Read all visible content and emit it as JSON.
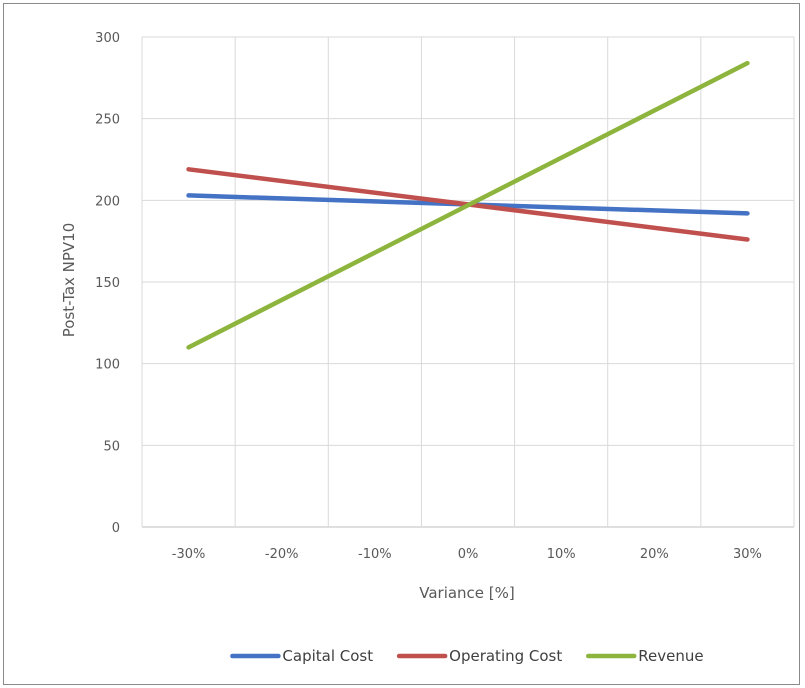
{
  "chart_data": {
    "type": "line",
    "title": "",
    "xlabel": "Variance [%]",
    "ylabel": "Post-Tax NPV10",
    "categories": [
      "-30%",
      "-20%",
      "-10%",
      "0%",
      "10%",
      "20%",
      "30%"
    ],
    "x": [
      -30,
      -20,
      -10,
      0,
      10,
      20,
      30
    ],
    "xlim": [
      -35,
      35
    ],
    "ylim": [
      0,
      300
    ],
    "yticks": [
      0,
      50,
      100,
      150,
      200,
      250,
      300
    ],
    "grid": true,
    "legend": "bottom",
    "series": [
      {
        "name": "Capital Cost",
        "color": "#4472C4",
        "x": [
          -30,
          30
        ],
        "values": [
          203,
          192
        ]
      },
      {
        "name": "Operating Cost",
        "color": "#C0504D",
        "x": [
          -30,
          30
        ],
        "values": [
          219,
          176
        ]
      },
      {
        "name": "Revenue",
        "color": "#8DB53E",
        "x": [
          -30,
          30
        ],
        "values": [
          110,
          284
        ]
      }
    ]
  }
}
